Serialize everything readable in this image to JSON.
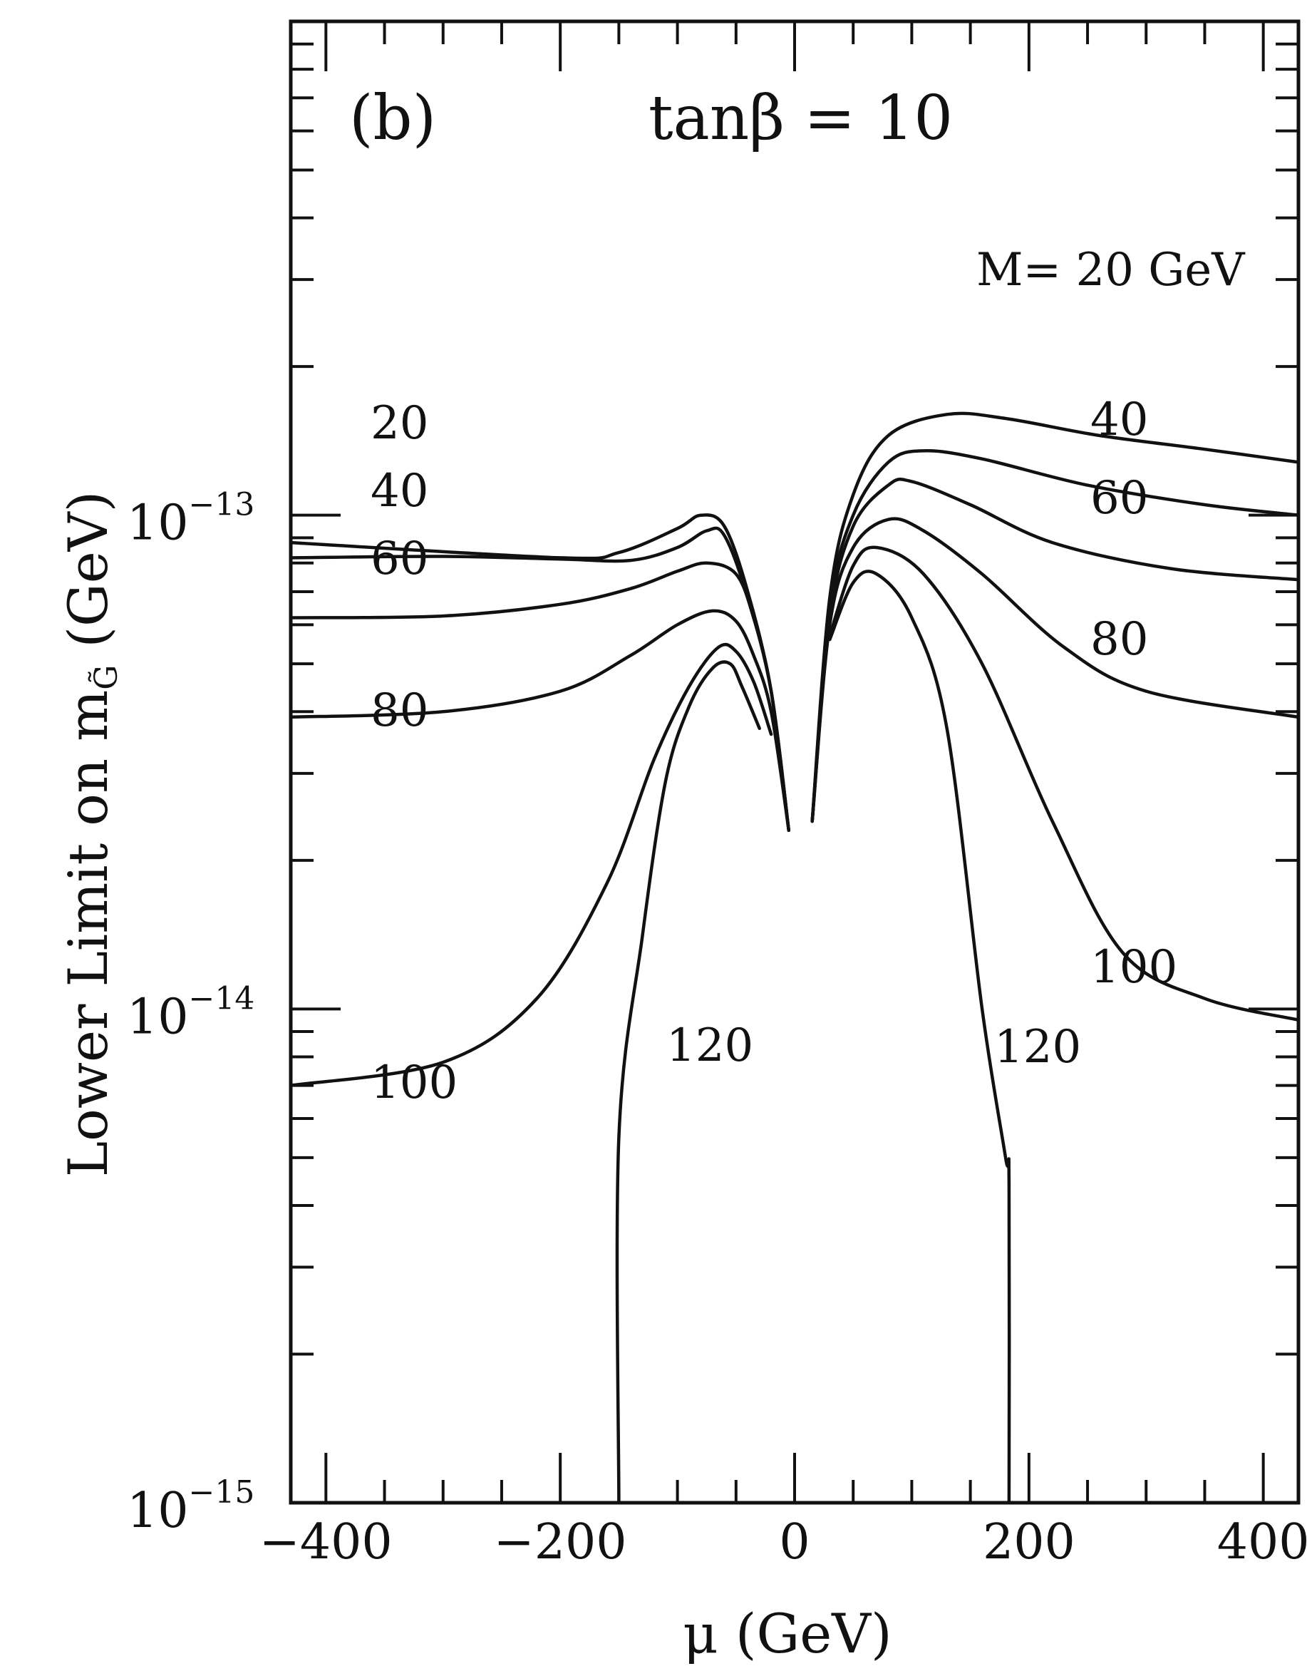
{
  "chart_data": {
    "type": "line",
    "panel_label": "(b)",
    "annotation": "tanβ = 10",
    "xlabel": "μ (GeV)",
    "ylabel": "Lower Limit on m",
    "ylabel_subscript": "G̃",
    "ylabel_unit": "(GeV)",
    "xlim": [
      -430,
      430
    ],
    "ylim": [
      1e-15,
      1e-12
    ],
    "yscale": "log",
    "x_ticks": [
      -400,
      -200,
      0,
      200,
      400
    ],
    "x_tick_labels": [
      "−400",
      "−200",
      "0",
      "200",
      "400"
    ],
    "y_ticks": [
      {
        "value": 1e-13,
        "base": "10",
        "exp": "−13"
      },
      {
        "value": 1e-14,
        "base": "10",
        "exp": "−14"
      },
      {
        "value": 1e-15,
        "base": "10",
        "exp": "−15"
      }
    ],
    "grid": false,
    "series": [
      {
        "name": "20",
        "label_right": "M= 20 GeV",
        "left": [
          [
            -430,
            8.8e-14
          ],
          [
            -200,
            8.2e-14
          ],
          [
            -150,
            8.4e-14
          ],
          [
            -100,
            9.4e-14
          ],
          [
            -80,
            1e-13
          ],
          [
            -60,
            9.5e-14
          ],
          [
            -40,
            7e-14
          ],
          [
            -20,
            4.4e-14
          ],
          [
            -5,
            2.3e-14
          ]
        ],
        "right": [
          [
            15,
            2.4e-14
          ],
          [
            30,
            6.8e-14
          ],
          [
            50,
            1.1e-13
          ],
          [
            80,
            1.45e-13
          ],
          [
            130,
            1.6e-13
          ],
          [
            180,
            1.57e-13
          ],
          [
            260,
            1.45e-13
          ],
          [
            350,
            1.36e-13
          ],
          [
            430,
            1.28e-13
          ]
        ]
      },
      {
        "name": "40",
        "label_right": "40",
        "left": [
          [
            -430,
            8.2e-14
          ],
          [
            -300,
            8.25e-14
          ],
          [
            -200,
            8.15e-14
          ],
          [
            -140,
            8.1e-14
          ],
          [
            -100,
            8.6e-14
          ],
          [
            -75,
            9.3e-14
          ],
          [
            -60,
            9.1e-14
          ],
          [
            -40,
            6.8e-14
          ],
          [
            -20,
            4.4e-14
          ],
          [
            -5,
            2.3e-14
          ]
        ],
        "right": [
          [
            15,
            2.4e-14
          ],
          [
            30,
            6.5e-14
          ],
          [
            50,
            1e-13
          ],
          [
            80,
            1.28e-13
          ],
          [
            110,
            1.35e-13
          ],
          [
            160,
            1.3e-13
          ],
          [
            250,
            1.15e-13
          ],
          [
            350,
            1.05e-13
          ],
          [
            430,
            1e-13
          ]
        ]
      },
      {
        "name": "60",
        "label_right": "60",
        "left": [
          [
            -430,
            6.2e-14
          ],
          [
            -300,
            6.25e-14
          ],
          [
            -200,
            6.6e-14
          ],
          [
            -140,
            7.1e-14
          ],
          [
            -100,
            7.7e-14
          ],
          [
            -75,
            8e-14
          ],
          [
            -50,
            7.6e-14
          ],
          [
            -35,
            6.2e-14
          ],
          [
            -20,
            4.4e-14
          ],
          [
            -5,
            2.3e-14
          ]
        ],
        "right": [
          [
            15,
            2.4e-14
          ],
          [
            30,
            6.2e-14
          ],
          [
            50,
            9.5e-14
          ],
          [
            80,
            1.15e-13
          ],
          [
            100,
            1.17e-13
          ],
          [
            150,
            1.05e-13
          ],
          [
            220,
            8.8e-14
          ],
          [
            320,
            7.8e-14
          ],
          [
            430,
            7.4e-14
          ]
        ]
      },
      {
        "name": "80",
        "label_right": "80",
        "left": [
          [
            -430,
            3.9e-14
          ],
          [
            -300,
            4e-14
          ],
          [
            -200,
            4.4e-14
          ],
          [
            -140,
            5.2e-14
          ],
          [
            -100,
            6e-14
          ],
          [
            -70,
            6.4e-14
          ],
          [
            -50,
            6.1e-14
          ],
          [
            -35,
            5.2e-14
          ],
          [
            -20,
            4e-14
          ],
          [
            -5,
            2.3e-14
          ]
        ],
        "right": [
          [
            15,
            2.4e-14
          ],
          [
            30,
            6e-14
          ],
          [
            50,
            8.6e-14
          ],
          [
            80,
            9.8e-14
          ],
          [
            110,
            9.3e-14
          ],
          [
            160,
            7.6e-14
          ],
          [
            230,
            5.4e-14
          ],
          [
            300,
            4.4e-14
          ],
          [
            430,
            3.9e-14
          ]
        ]
      },
      {
        "name": "100",
        "label_right": "100",
        "left": [
          [
            -430,
            7e-15
          ],
          [
            -300,
            7.8e-15
          ],
          [
            -220,
            1.05e-14
          ],
          [
            -160,
            1.8e-14
          ],
          [
            -120,
            3.2e-14
          ],
          [
            -90,
            4.5e-14
          ],
          [
            -65,
            5.4e-14
          ],
          [
            -50,
            5.3e-14
          ],
          [
            -35,
            4.6e-14
          ],
          [
            -20,
            3.6e-14
          ]
        ],
        "right": [
          [
            30,
            5.7e-14
          ],
          [
            50,
            7.9e-14
          ],
          [
            70,
            8.6e-14
          ],
          [
            110,
            7.6e-14
          ],
          [
            160,
            5e-14
          ],
          [
            220,
            2.4e-14
          ],
          [
            280,
            1.3e-14
          ],
          [
            350,
            1.05e-14
          ],
          [
            430,
            9.5e-15
          ]
        ]
      },
      {
        "name": "120",
        "label_left": "120",
        "label_right": "120",
        "left": [
          [
            -150,
            1e-15
          ],
          [
            -150,
            5.5e-15
          ],
          [
            -130,
            1.4e-14
          ],
          [
            -110,
            2.9e-14
          ],
          [
            -90,
            4.1e-14
          ],
          [
            -70,
            4.9e-14
          ],
          [
            -55,
            5e-14
          ],
          [
            -45,
            4.5e-14
          ],
          [
            -30,
            3.7e-14
          ]
        ],
        "right": [
          [
            30,
            5.6e-14
          ],
          [
            50,
            7.3e-14
          ],
          [
            70,
            7.6e-14
          ],
          [
            100,
            6.2e-14
          ],
          [
            130,
            3.7e-14
          ],
          [
            160,
            1e-14
          ],
          [
            180,
            5e-15
          ],
          [
            183,
            4.4e-15
          ],
          [
            183,
            1e-15
          ]
        ]
      }
    ],
    "curve_label_positions": {
      "left": [
        "20",
        "40",
        "60",
        "80",
        "100"
      ],
      "right": [
        "40",
        "60",
        "80",
        "100",
        "120"
      ]
    }
  }
}
